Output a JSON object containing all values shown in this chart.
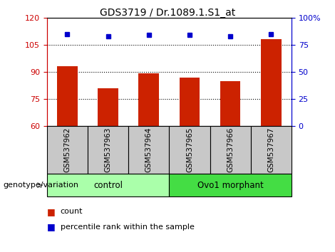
{
  "title": "GDS3719 / Dr.1089.1.S1_at",
  "samples": [
    "GSM537962",
    "GSM537963",
    "GSM537964",
    "GSM537965",
    "GSM537966",
    "GSM537967"
  ],
  "counts": [
    93,
    81,
    89,
    87,
    85,
    108
  ],
  "percentile_ranks": [
    85,
    83,
    84,
    84,
    83,
    85
  ],
  "ylim_left": [
    60,
    120
  ],
  "ylim_right": [
    0,
    100
  ],
  "yticks_left": [
    60,
    75,
    90,
    105,
    120
  ],
  "yticks_right": [
    0,
    25,
    50,
    75,
    100
  ],
  "ytick_labels_right": [
    "0",
    "25",
    "50",
    "75",
    "100%"
  ],
  "groups": [
    {
      "label": "control",
      "indices": [
        0,
        1,
        2
      ],
      "color": "#AAFFAA"
    },
    {
      "label": "Ovo1 morphant",
      "indices": [
        3,
        4,
        5
      ],
      "color": "#44DD44"
    }
  ],
  "bar_color": "#CC2200",
  "percentile_color": "#0000CC",
  "bar_width": 0.5,
  "left_axis_color": "#CC0000",
  "right_axis_color": "#0000CC",
  "legend_count_label": "count",
  "legend_pct_label": "percentile rank within the sample",
  "genotype_label": "genotype/variation",
  "sample_bg_color": "#C8C8C8",
  "fig_width": 4.7,
  "fig_height": 3.54,
  "dpi": 100
}
